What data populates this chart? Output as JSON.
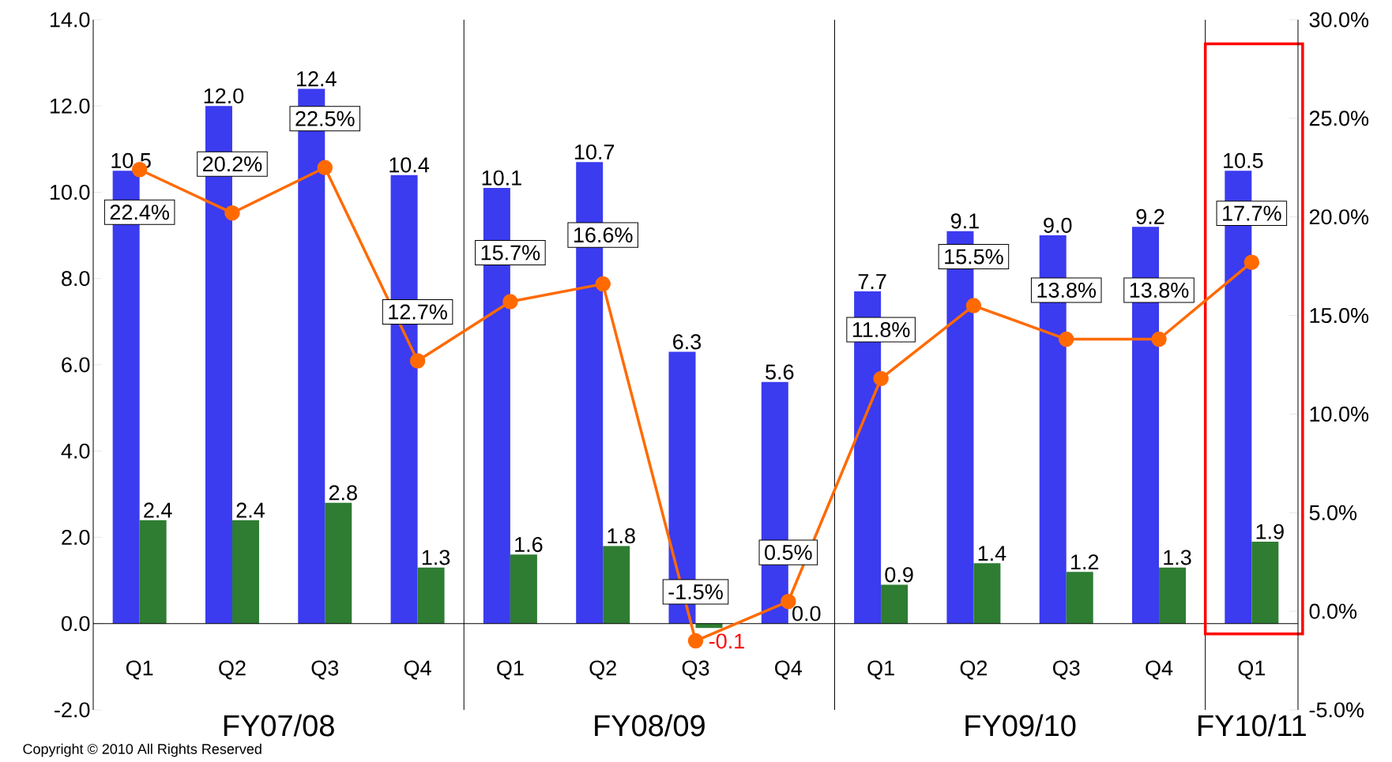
{
  "chart_data": {
    "type": "bar",
    "categories": [
      "Q1",
      "Q2",
      "Q3",
      "Q4",
      "Q1",
      "Q2",
      "Q3",
      "Q4",
      "Q1",
      "Q2",
      "Q3",
      "Q4",
      "Q1"
    ],
    "series": [
      {
        "color": "#3b3bf0",
        "values": [
          10.5,
          12.0,
          12.4,
          10.4,
          10.1,
          10.7,
          6.3,
          5.6,
          7.7,
          9.1,
          9.0,
          9.2,
          10.5
        ],
        "value_labels": [
          "10.5",
          "12.0",
          "12.4",
          "10.4",
          "10.1",
          "10.7",
          "6.3",
          "5.6",
          "7.7",
          "9.1",
          "9.0",
          "9.2",
          "10.5"
        ]
      },
      {
        "color": "#2e7d32",
        "values": [
          2.4,
          2.4,
          2.8,
          1.3,
          1.6,
          1.8,
          -0.1,
          0.0,
          0.9,
          1.4,
          1.2,
          1.3,
          1.9
        ],
        "value_labels": [
          "2.4",
          "2.4",
          "2.8",
          "1.3",
          "1.6",
          "1.8",
          "-0.1",
          "0.0",
          "0.9",
          "1.4",
          "1.2",
          "1.3",
          "1.9"
        ]
      },
      {
        "type": "line",
        "axis": "y2",
        "color": "#ff6a00",
        "values": [
          22.4,
          20.2,
          22.5,
          12.7,
          15.7,
          16.6,
          -1.5,
          0.5,
          11.8,
          15.5,
          13.8,
          13.8,
          17.7
        ],
        "value_labels": [
          "22.4%",
          "20.2%",
          "22.5%",
          "12.7%",
          "15.7%",
          "16.6%",
          "-1.5%",
          "0.5%",
          "11.8%",
          "15.5%",
          "13.8%",
          "13.8%",
          "17.7%"
        ]
      }
    ],
    "ylim": [
      -2,
      14
    ],
    "yticks": [
      {
        "value": -2,
        "label": "-2.0"
      },
      {
        "value": 0,
        "label": "0.0"
      },
      {
        "value": 2,
        "label": "2.0"
      },
      {
        "value": 4,
        "label": "4.0"
      },
      {
        "value": 6,
        "label": "6.0"
      },
      {
        "value": 8,
        "label": "8.0"
      },
      {
        "value": 10,
        "label": "10.0"
      },
      {
        "value": 12,
        "label": "12.0"
      },
      {
        "value": 14,
        "label": "14.0"
      }
    ],
    "y2lim": [
      -5,
      30
    ],
    "y2ticks": [
      {
        "value": -5,
        "label": "-5.0%"
      },
      {
        "value": 0,
        "label": "0.0%"
      },
      {
        "value": 5,
        "label": "5.0%"
      },
      {
        "value": 10,
        "label": "10.0%"
      },
      {
        "value": 15,
        "label": "15.0%"
      },
      {
        "value": 20,
        "label": "20.0%"
      },
      {
        "value": 25,
        "label": "25.0%"
      },
      {
        "value": 30,
        "label": "30.0%"
      }
    ],
    "marker": "circle",
    "line_style": "solid",
    "annotations": [
      "FY07/08",
      "FY08/09",
      "FY09/10",
      "FY10/11",
      "Copyright © 2010 All Rights Reserved"
    ]
  }
}
